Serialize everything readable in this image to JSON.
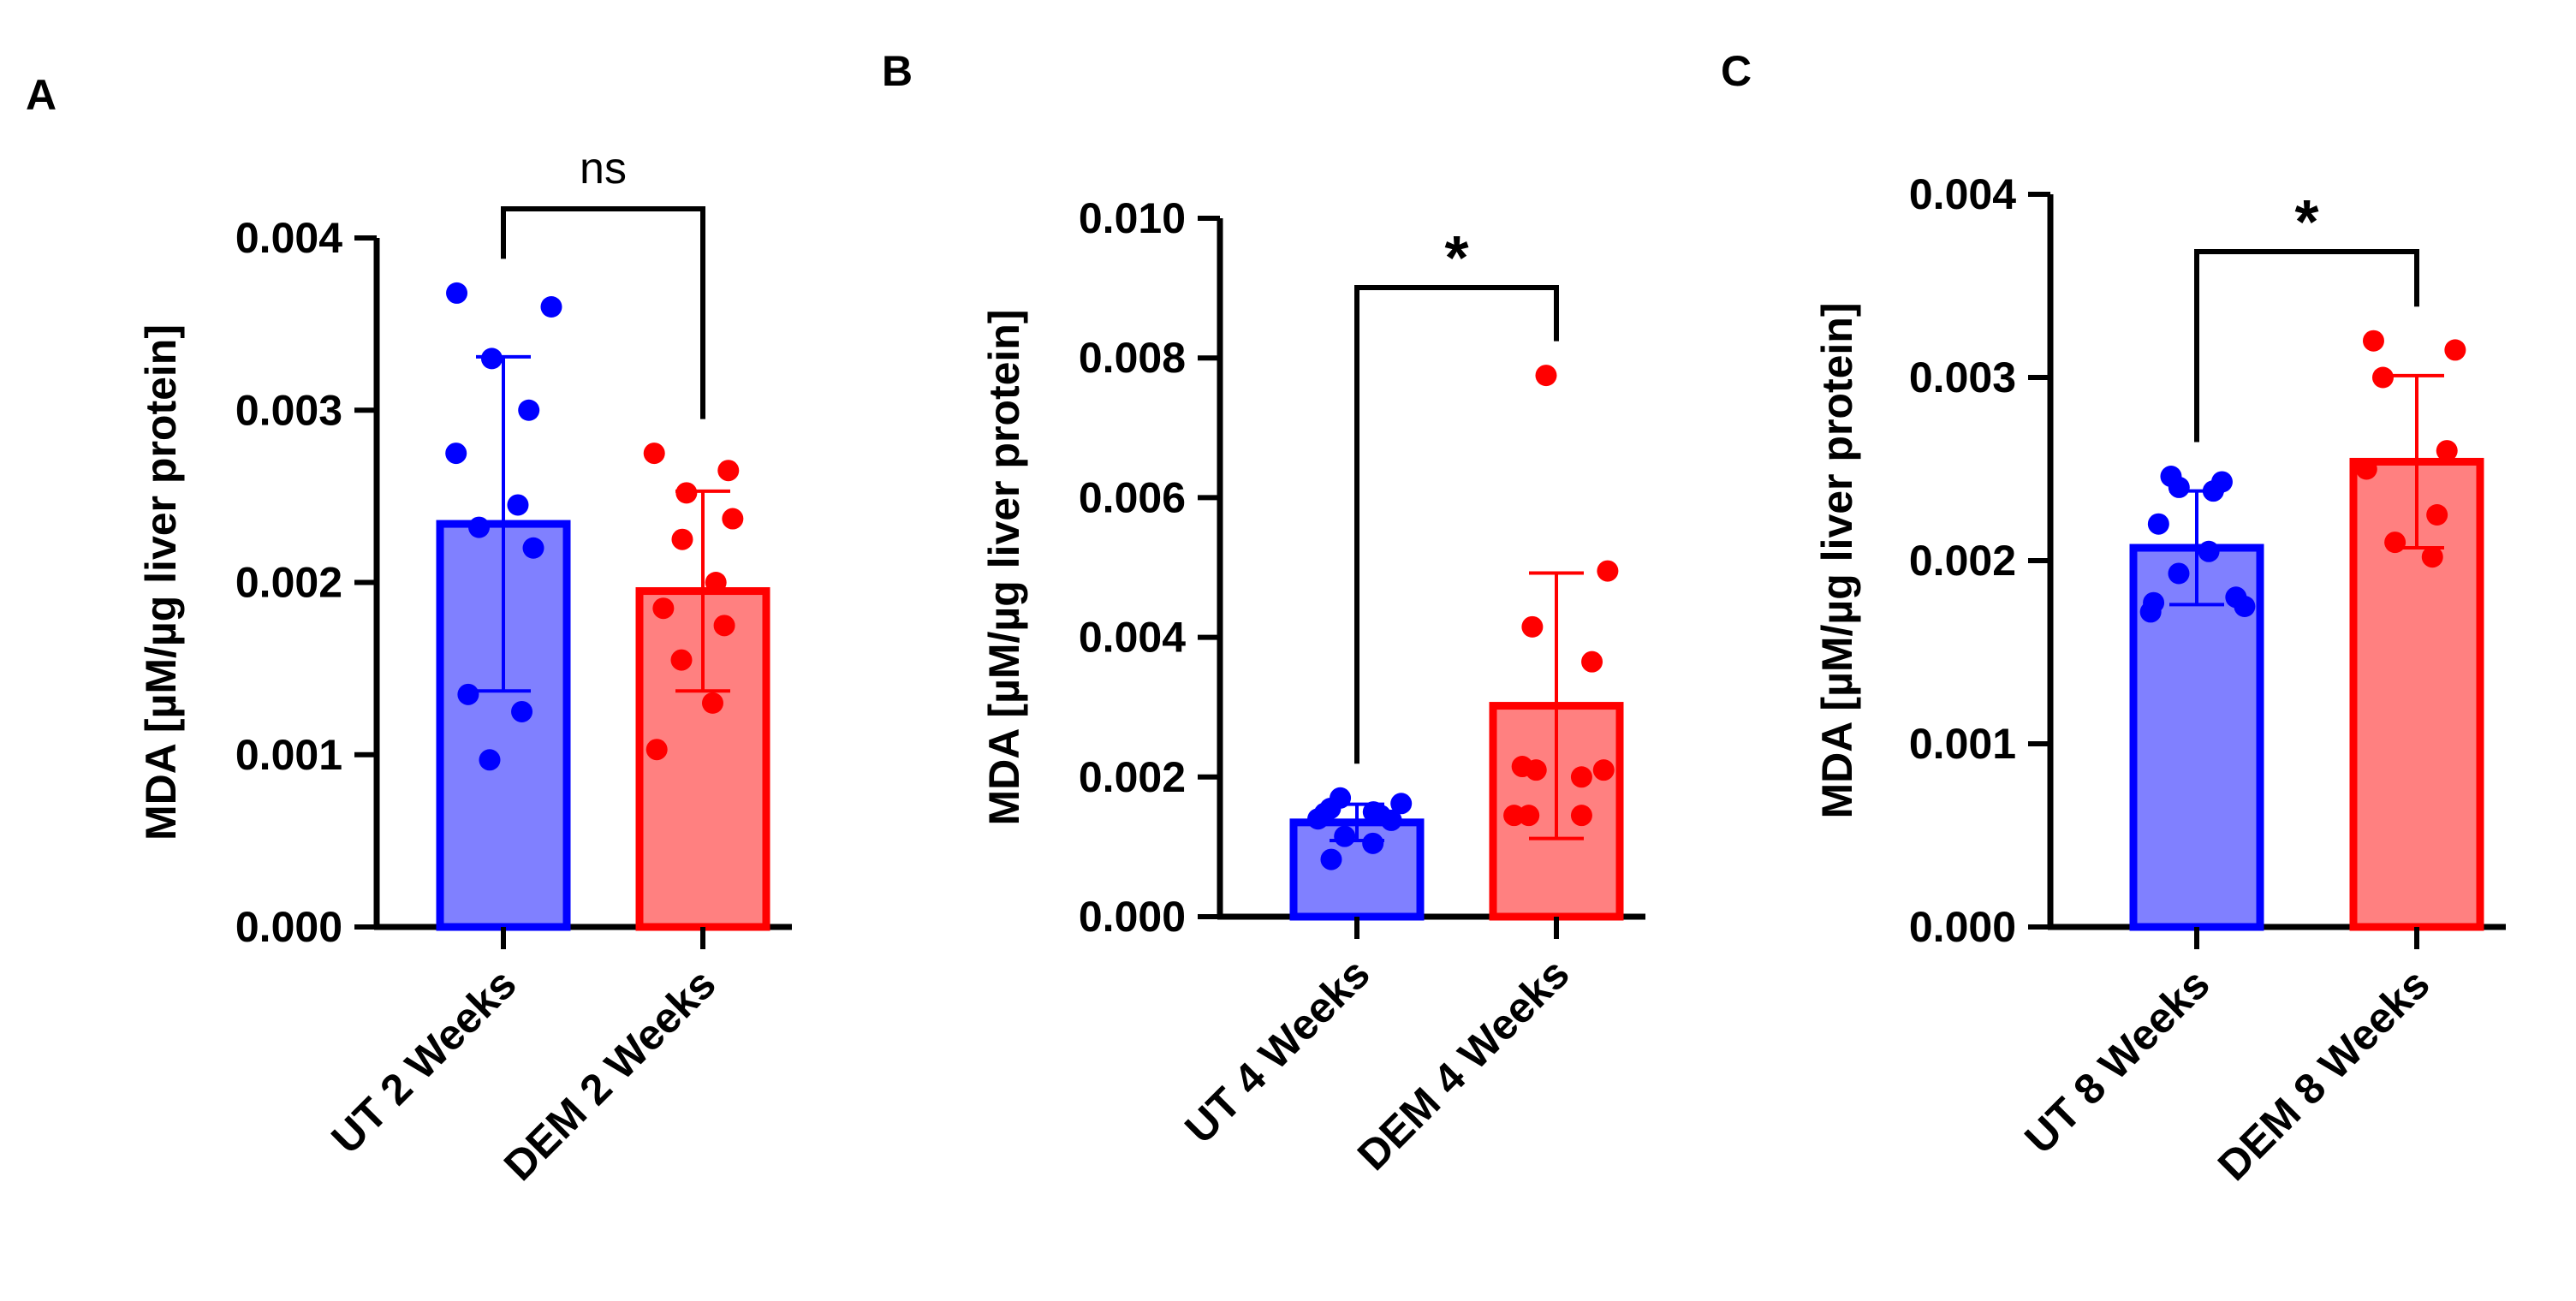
{
  "chart_data": [
    {
      "panel": "A",
      "type": "bar",
      "ylabel": "MDA [µM/µg liver protein]",
      "ylim": [
        0,
        0.004
      ],
      "yticks": [
        "0.000",
        "0.001",
        "0.002",
        "0.003",
        "0.004"
      ],
      "categories": [
        "UT 2 Weeks",
        "DEM 2 Weeks"
      ],
      "values": [
        0.00234,
        0.00195
      ],
      "sd": [
        0.00097,
        0.00058
      ],
      "points": [
        [
          0.00368,
          0.0036,
          0.0033,
          0.003,
          0.00275,
          0.00245,
          0.00232,
          0.0022,
          0.00135,
          0.00125,
          0.00097
        ],
        [
          0.00275,
          0.00265,
          0.00252,
          0.00237,
          0.00225,
          0.002,
          0.00185,
          0.00175,
          0.00155,
          0.0013,
          0.00103
        ]
      ],
      "significance": "ns",
      "colors": {
        "fill": [
          "#8080ff",
          "#ff8080"
        ],
        "edge": [
          "#0000ff",
          "#ff0000"
        ]
      }
    },
    {
      "panel": "B",
      "type": "bar",
      "ylabel": "MDA [µM/µg liver protein]",
      "ylim": [
        0,
        0.01
      ],
      "yticks": [
        "0.000",
        "0.002",
        "0.004",
        "0.006",
        "0.008",
        "0.010"
      ],
      "categories": [
        "UT 4 Weeks",
        "DEM 4 Weeks"
      ],
      "values": [
        0.00135,
        0.00302
      ],
      "sd": [
        0.00026,
        0.0019
      ],
      "points": [
        [
          0.0017,
          0.00162,
          0.00155,
          0.0015,
          0.00148,
          0.00145,
          0.0014,
          0.00138,
          0.00115,
          0.00105,
          0.00082
        ],
        [
          0.00775,
          0.00495,
          0.00415,
          0.00365,
          0.00215,
          0.0021,
          0.0021,
          0.002,
          0.00145,
          0.00145,
          0.00145
        ]
      ],
      "significance": "*",
      "colors": {
        "fill": [
          "#8080ff",
          "#ff8080"
        ],
        "edge": [
          "#0000ff",
          "#ff0000"
        ]
      }
    },
    {
      "panel": "C",
      "type": "bar",
      "ylabel": "MDA [µM/µg liver protein]",
      "ylim": [
        0,
        0.004
      ],
      "yticks": [
        "0.000",
        "0.001",
        "0.002",
        "0.003",
        "0.004"
      ],
      "categories": [
        "UT 8 Weeks",
        "DEM 8 Weeks"
      ],
      "values": [
        0.00207,
        0.00254
      ],
      "sd": [
        0.00031,
        0.00047
      ],
      "points": [
        [
          0.00246,
          0.00243,
          0.0024,
          0.00238,
          0.0022,
          0.00205,
          0.00193,
          0.0018,
          0.00177,
          0.00175,
          0.00172
        ],
        [
          0.0032,
          0.00315,
          0.003,
          0.0026,
          0.0025,
          0.00225,
          0.0021,
          0.00202
        ]
      ],
      "significance": "*",
      "colors": {
        "fill": [
          "#8080ff",
          "#ff8080"
        ],
        "edge": [
          "#0000ff",
          "#ff0000"
        ]
      }
    }
  ]
}
